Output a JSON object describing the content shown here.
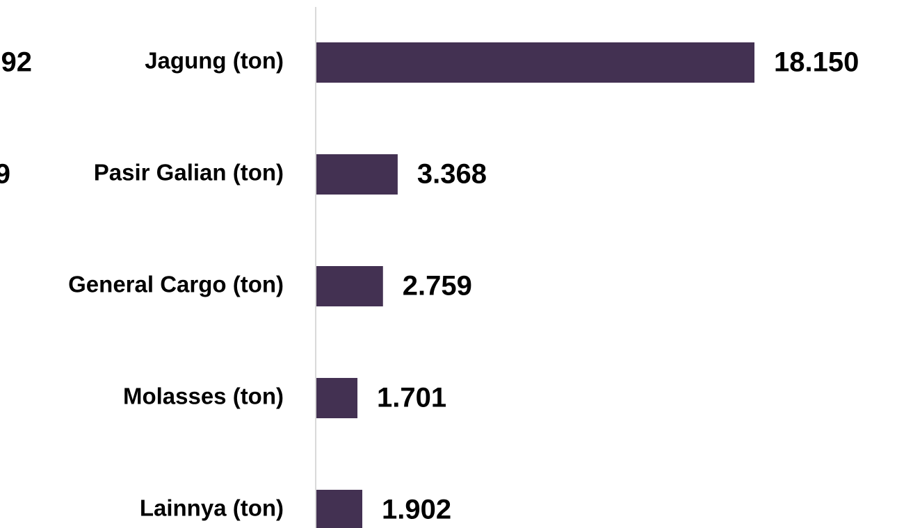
{
  "chart_data": {
    "type": "bar",
    "orientation": "horizontal",
    "categories": [
      "Jagung (ton)",
      "Pasir Galian (ton)",
      "General Cargo (ton)",
      "Molasses (ton)",
      "Lainnya (ton)"
    ],
    "values": [
      18150,
      3368,
      2759,
      1701,
      1902
    ],
    "value_labels": [
      "18.150",
      "3.368",
      "2.759",
      "1.701",
      "1.902"
    ],
    "color": "#433152",
    "clipped_labels": [
      "92",
      "9"
    ]
  }
}
